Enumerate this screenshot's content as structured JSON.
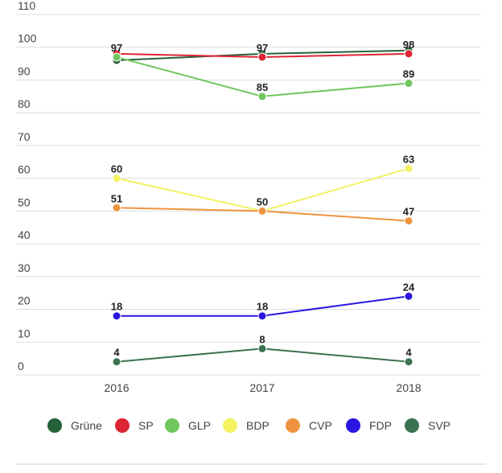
{
  "chart_data": {
    "type": "line",
    "x": [
      "2016",
      "2017",
      "2018"
    ],
    "ylim": [
      0,
      110
    ],
    "yticks": [
      0,
      10,
      20,
      30,
      40,
      50,
      60,
      70,
      80,
      90,
      100,
      110
    ],
    "grid": true,
    "legend_placement": "bottom",
    "series": [
      {
        "name": "Grüne",
        "color": "#27613a",
        "values": [
          96,
          98,
          99
        ],
        "labels": [
          null,
          null,
          null
        ]
      },
      {
        "name": "SP",
        "color": "#dd2533",
        "values": [
          98,
          97,
          98
        ],
        "labels": [
          null,
          97,
          98
        ]
      },
      {
        "name": "GLP",
        "color": "#6ec65c",
        "values": [
          97,
          85,
          89
        ],
        "labels": [
          97,
          85,
          89
        ]
      },
      {
        "name": "BDP",
        "color": "#f2f262",
        "values": [
          60,
          50,
          63
        ],
        "labels": [
          60,
          null,
          63
        ]
      },
      {
        "name": "CVP",
        "color": "#ee9440",
        "values": [
          51,
          50,
          47
        ],
        "labels": [
          51,
          50,
          47
        ]
      },
      {
        "name": "FDP",
        "color": "#2a16e0",
        "values": [
          18,
          18,
          24
        ],
        "labels": [
          18,
          18,
          24
        ]
      },
      {
        "name": "SVP",
        "color": "#3a7350",
        "values": [
          4,
          8,
          4
        ],
        "labels": [
          4,
          8,
          4
        ]
      }
    ]
  }
}
